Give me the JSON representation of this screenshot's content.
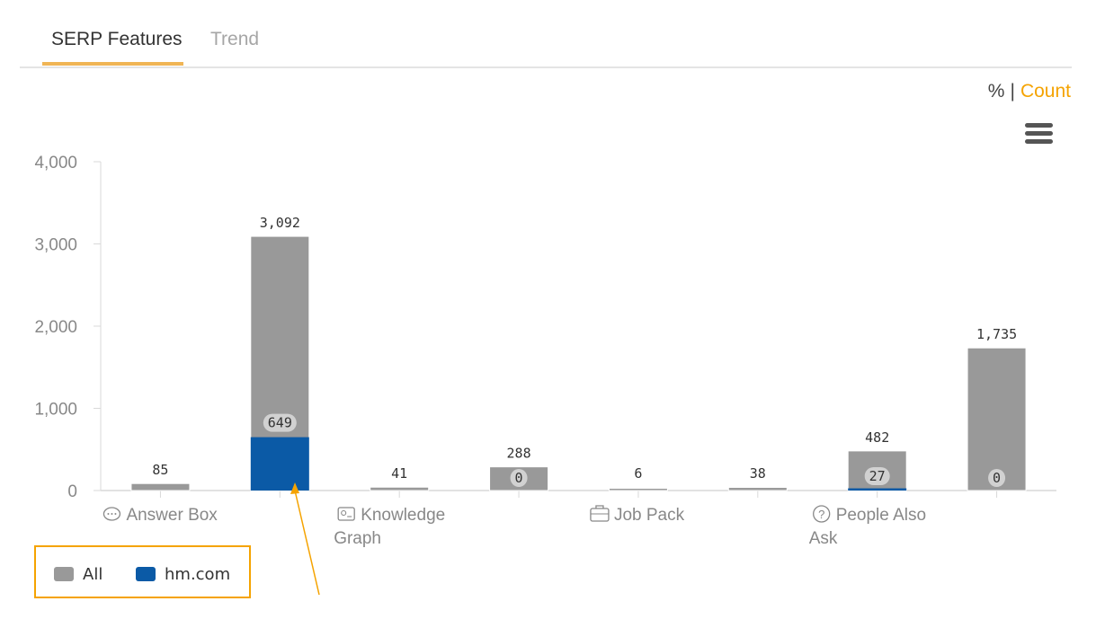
{
  "tabs": [
    {
      "label": "SERP Features",
      "active": true
    },
    {
      "label": "Trend",
      "active": false
    }
  ],
  "toggle": {
    "percent_label": "%",
    "separator": "|",
    "count_label": "Count",
    "selected": "Count"
  },
  "menu": {
    "icon": "hamburger-menu-icon"
  },
  "colors": {
    "all": "#999999",
    "domain": "#0b5aa6",
    "accent": "#f5a300"
  },
  "chart_data": {
    "type": "bar",
    "stacked": true,
    "ylim": [
      0,
      4000
    ],
    "yticks": [
      "0",
      "1,000",
      "2,000",
      "3,000",
      "4,000"
    ],
    "ytick_values": [
      0,
      1000,
      2000,
      3000,
      4000
    ],
    "categories": [
      "Answer Box",
      "",
      "Knowledge Graph",
      "",
      "Job Pack",
      "",
      "People Also Ask",
      ""
    ],
    "category_icons": [
      "speech-bubble-icon",
      "",
      "knowledge-card-icon",
      "",
      "briefcase-icon",
      "",
      "question-circle-icon",
      ""
    ],
    "series": [
      {
        "name": "All",
        "color": "#999999",
        "values": [
          85,
          3092,
          41,
          288,
          6,
          38,
          482,
          1735
        ]
      },
      {
        "name": "hm.com",
        "color": "#0b5aa6",
        "values": [
          0,
          649,
          0,
          0,
          0,
          0,
          27,
          0
        ]
      }
    ],
    "total_labels": [
      "85",
      "3,092",
      "41",
      "288",
      "6",
      "38",
      "482",
      "1,735"
    ],
    "inner_labels": [
      "",
      "649",
      "",
      "0",
      "",
      "",
      "27",
      "0"
    ],
    "grid": false,
    "legend_position": "bottom-left"
  },
  "legend": [
    {
      "label": "All",
      "color": "#999999"
    },
    {
      "label": "hm.com",
      "color": "#0b5aa6"
    }
  ]
}
